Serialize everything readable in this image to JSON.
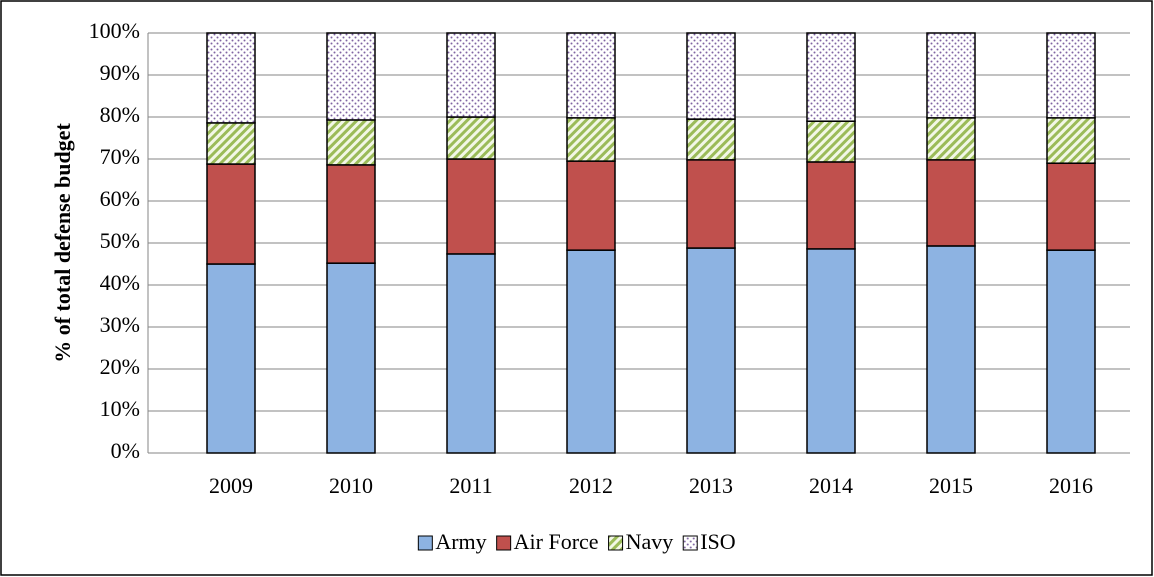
{
  "chart_data": {
    "type": "stacked_bar",
    "y_label": "% of total defense budget",
    "categories": [
      "2009",
      "2010",
      "2011",
      "2012",
      "2013",
      "2014",
      "2015",
      "2016"
    ],
    "series": [
      {
        "name": "Army",
        "color": "#8db3e2",
        "fill": "solid",
        "values": [
          45.0,
          45.2,
          47.4,
          48.3,
          48.8,
          48.6,
          49.3,
          48.3
        ]
      },
      {
        "name": "Air Force",
        "color": "#c0504d",
        "fill": "solid",
        "values": [
          23.8,
          23.4,
          22.6,
          21.2,
          21.0,
          20.7,
          20.5,
          20.7
        ]
      },
      {
        "name": "Navy",
        "color": "#9bbb59",
        "fill": "stripes",
        "values": [
          9.8,
          10.7,
          10.0,
          10.3,
          9.7,
          9.7,
          10.0,
          10.8
        ]
      },
      {
        "name": "ISO",
        "color": "#8064a2",
        "fill": "dots",
        "values": [
          21.4,
          20.7,
          20.0,
          20.2,
          20.5,
          21.0,
          20.2,
          20.2
        ]
      }
    ],
    "ylim": [
      0,
      100
    ],
    "yticks": [
      {
        "value": 0,
        "label": "0%"
      },
      {
        "value": 10,
        "label": "10%"
      },
      {
        "value": 20,
        "label": "20%"
      },
      {
        "value": 30,
        "label": "30%"
      },
      {
        "value": 40,
        "label": "40%"
      },
      {
        "value": 50,
        "label": "50%"
      },
      {
        "value": 60,
        "label": "60%"
      },
      {
        "value": 70,
        "label": "70%"
      },
      {
        "value": 80,
        "label": "80%"
      },
      {
        "value": 90,
        "label": "90%"
      },
      {
        "value": 100,
        "label": "100%"
      }
    ],
    "grid": true,
    "legend": "bottom"
  }
}
